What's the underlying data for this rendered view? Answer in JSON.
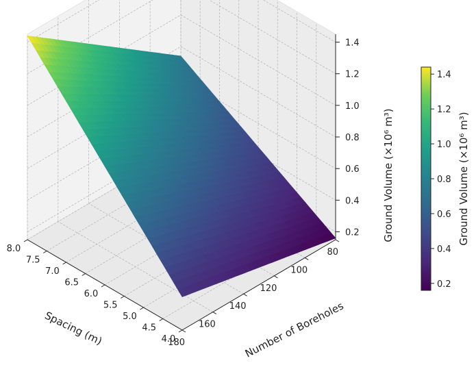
{
  "chart_data": {
    "type": "surface3d",
    "title": "",
    "x": {
      "label": "Spacing (m)",
      "range": [
        4.0,
        8.0
      ],
      "ticks": [
        "4.0",
        "4.5",
        "5.0",
        "5.5",
        "6.0",
        "6.5",
        "7.0",
        "7.5",
        "8.0"
      ]
    },
    "y": {
      "label": "Number of Boreholes",
      "range": [
        80,
        180
      ],
      "ticks": [
        "80",
        "100",
        "120",
        "140",
        "160",
        "180"
      ]
    },
    "z": {
      "label": "Ground Volume (×10⁶ m³)",
      "range": [
        0.15,
        1.45
      ],
      "ticks": [
        "0.2",
        "0.4",
        "0.6",
        "0.8",
        "1.0",
        "1.2",
        "1.4"
      ]
    },
    "corners": [
      {
        "spacing": 4.0,
        "boreholes": 80,
        "volume": 0.16
      },
      {
        "spacing": 8.0,
        "boreholes": 80,
        "volume": 0.74
      },
      {
        "spacing": 4.0,
        "boreholes": 180,
        "volume": 0.36
      },
      {
        "spacing": 8.0,
        "boreholes": 180,
        "volume": 1.44
      }
    ],
    "colormap": "viridis",
    "colorbar": {
      "label": "Ground Volume (×10⁶ m³)",
      "range": [
        0.16,
        1.44
      ],
      "ticks": [
        "0.2",
        "0.4",
        "0.6",
        "0.8",
        "1.0",
        "1.2",
        "1.4"
      ]
    },
    "grid": true
  }
}
